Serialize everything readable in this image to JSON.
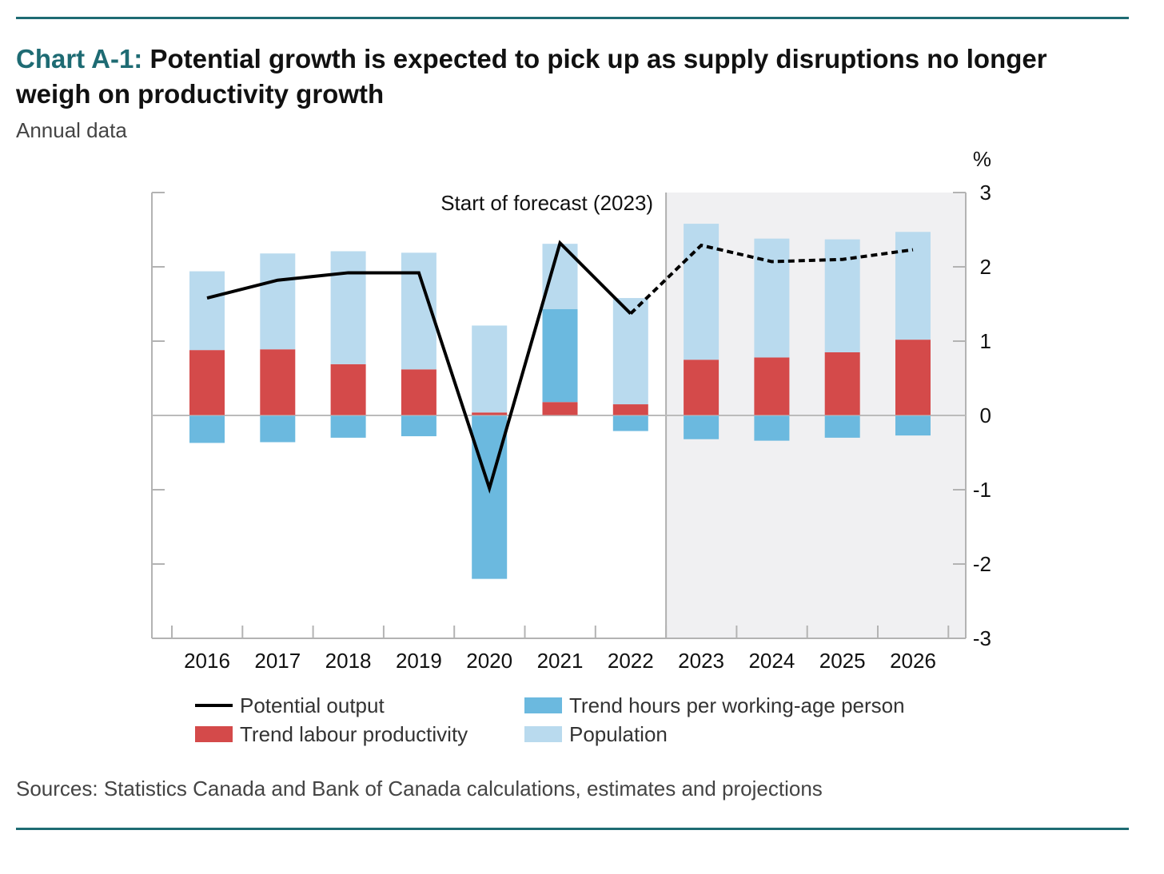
{
  "title_prefix": "Chart A-1:",
  "title_text": "Potential growth is expected to pick up as supply disruptions no longer weigh on productivity growth",
  "subtitle": "Annual data",
  "source": "Sources: Statistics Canada and Bank of Canada calculations, estimates and projections",
  "colors": {
    "accent": "#1e6b73",
    "productivity": "#d44a4a",
    "hours": "#6bb9df",
    "population": "#b9daee",
    "line": "#000000",
    "forecast_shade": "#f0f0f2"
  },
  "chart_data": {
    "type": "bar",
    "stacked": true,
    "categories": [
      "2016",
      "2017",
      "2018",
      "2019",
      "2020",
      "2021",
      "2022",
      "2023",
      "2024",
      "2025",
      "2026"
    ],
    "y_unit": "%",
    "y_axis_side": "right",
    "ylim": [
      -3,
      3
    ],
    "yticks": [
      3,
      2,
      1,
      0,
      -1,
      -2,
      -3
    ],
    "forecast_start": "2023",
    "forecast_label": "Start of forecast (2023)",
    "series": [
      {
        "name": "Trend labour productivity",
        "kind": "bar",
        "values": [
          0.88,
          0.89,
          0.69,
          0.62,
          0.04,
          0.18,
          0.15,
          0.75,
          0.78,
          0.85,
          1.02
        ]
      },
      {
        "name": "Trend hours per working-age person",
        "kind": "bar",
        "values": [
          -0.37,
          -0.36,
          -0.3,
          -0.28,
          -2.2,
          1.25,
          -0.21,
          -0.32,
          -0.34,
          -0.3,
          -0.27
        ]
      },
      {
        "name": "Population",
        "kind": "bar",
        "values": [
          1.06,
          1.29,
          1.52,
          1.57,
          1.17,
          0.88,
          1.43,
          1.83,
          1.6,
          1.52,
          1.45
        ]
      },
      {
        "name": "Potential output",
        "kind": "line",
        "values": [
          1.58,
          1.82,
          1.92,
          1.92,
          -0.98,
          2.32,
          1.37,
          2.29,
          2.07,
          2.1,
          2.23
        ]
      }
    ],
    "legend": [
      {
        "name": "Potential output",
        "swatch": "line"
      },
      {
        "name": "Trend hours per working-age person",
        "swatch": "hours"
      },
      {
        "name": "Trend labour productivity",
        "swatch": "productivity"
      },
      {
        "name": "Population",
        "swatch": "population"
      }
    ],
    "legend_position": "bottom"
  }
}
